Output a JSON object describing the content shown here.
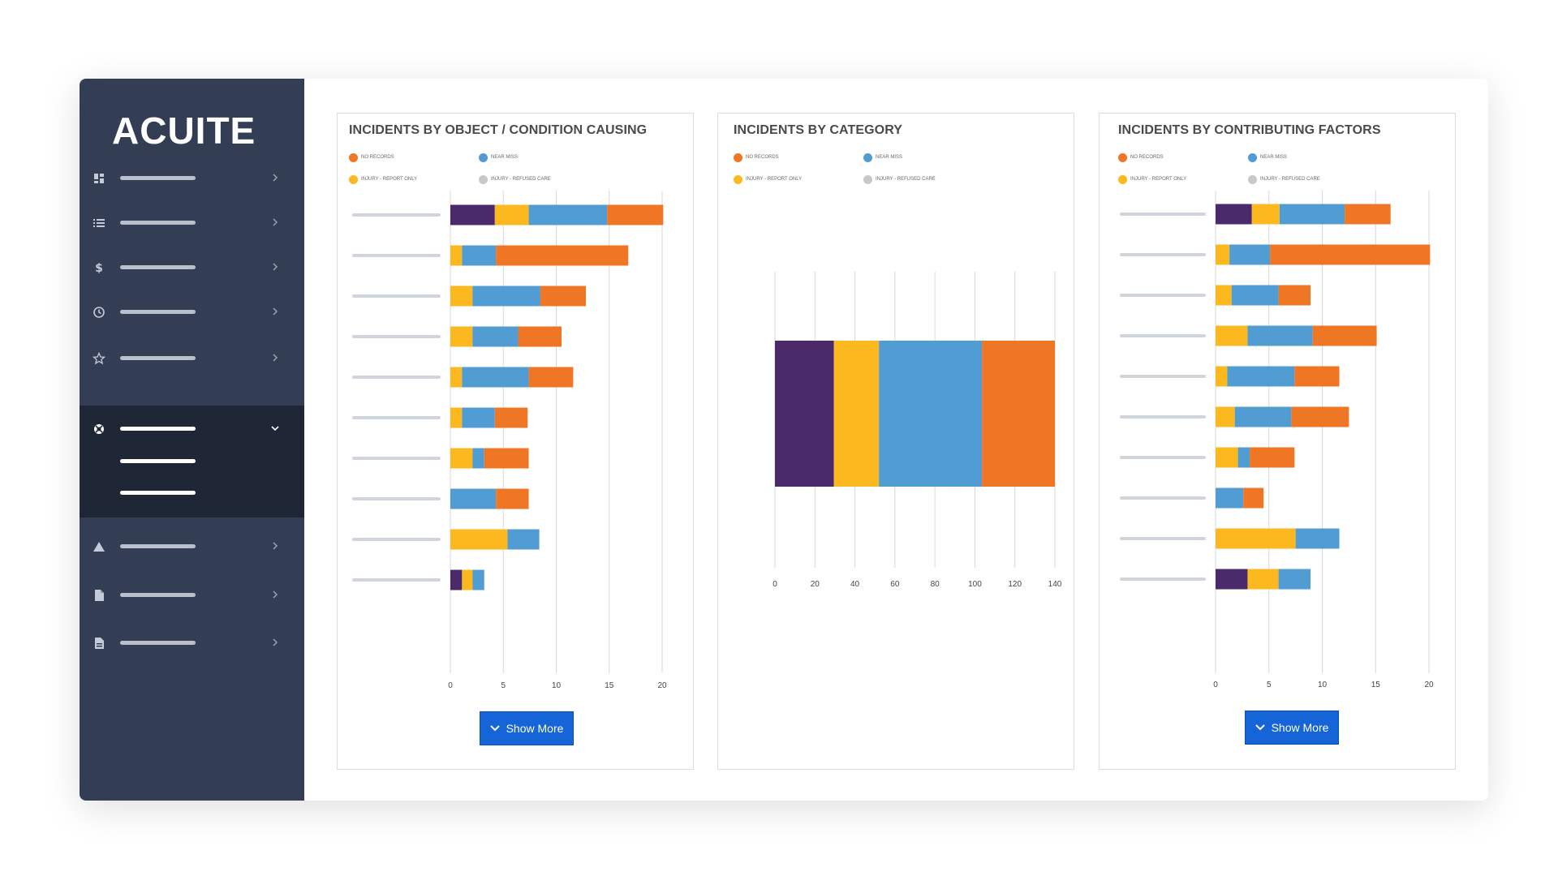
{
  "brand": {
    "logo_text": "ACUITE"
  },
  "colors": {
    "sidebar": "#333e54",
    "sidebar_active_group": "#1f2737",
    "series_purple": "#4b2a6b",
    "series_yellow": "#fbb91f",
    "series_blue": "#529cd4",
    "series_orange": "#ee7625",
    "button": "#1565d8"
  },
  "sidebar": {
    "items": [
      {
        "icon": "dashboard-icon",
        "label": ""
      },
      {
        "icon": "list-icon",
        "label": ""
      },
      {
        "icon": "dollar-icon",
        "label": ""
      },
      {
        "icon": "clock-icon",
        "label": ""
      },
      {
        "icon": "star-icon",
        "label": ""
      },
      {
        "icon": "lifebuoy-icon",
        "label": "",
        "expanded": true
      },
      {
        "icon": "warning-icon",
        "label": ""
      },
      {
        "icon": "file-icon",
        "label": ""
      },
      {
        "icon": "document-icon",
        "label": ""
      }
    ]
  },
  "legend": [
    {
      "label": "NO RECORDS",
      "color": "#ee7625"
    },
    {
      "label": "NEAR MISS",
      "color": "#529cd4"
    },
    {
      "label": "INJURY - REPORT ONLY",
      "color": "#fbb91f"
    },
    {
      "label": "INJURY - REFUSED CARE",
      "color": "#c8c8c8"
    }
  ],
  "panels": [
    {
      "title": "INCIDENTS BY OBJECT / CONDITION CAUSING",
      "show_more": "Show More"
    },
    {
      "title": "INCIDENTS BY CATEGORY"
    },
    {
      "title": "INCIDENTS BY CONTRIBUTING FACTORS",
      "show_more": "Show More"
    }
  ],
  "chart_data": [
    {
      "type": "bar",
      "orientation": "horizontal",
      "stacked": true,
      "title": "INCIDENTS BY OBJECT / CONDITION CAUSING",
      "xlim": [
        0,
        20
      ],
      "xticks": [
        0,
        5,
        10,
        15,
        20
      ],
      "categories": [
        "",
        "",
        "",
        "",
        "",
        "",
        "",
        "",
        "",
        ""
      ],
      "series": [
        {
          "color": "#4b2a6b",
          "values": [
            4.2,
            0,
            0,
            0,
            0,
            0,
            0,
            0,
            0,
            1.1
          ]
        },
        {
          "color": "#fbb91f",
          "values": [
            3.2,
            1.1,
            2.1,
            2.1,
            1.1,
            1.1,
            2.1,
            0,
            5.4,
            1.0
          ]
        },
        {
          "color": "#529cd4",
          "values": [
            7.4,
            3.2,
            6.4,
            4.3,
            6.3,
            3.1,
            1.1,
            4.3,
            3.0,
            1.1
          ]
        },
        {
          "color": "#ee7625",
          "values": [
            5.3,
            12.5,
            4.3,
            4.1,
            4.2,
            3.1,
            4.2,
            3.1,
            0,
            0
          ]
        }
      ]
    },
    {
      "type": "bar",
      "orientation": "horizontal",
      "stacked": true,
      "title": "INCIDENTS BY CATEGORY",
      "xlim": [
        0,
        140
      ],
      "xticks": [
        0,
        20,
        40,
        60,
        80,
        100,
        120,
        140
      ],
      "categories": [
        ""
      ],
      "series": [
        {
          "color": "#4b2a6b",
          "values": [
            29.5
          ]
        },
        {
          "color": "#fbb91f",
          "values": [
            22.5
          ]
        },
        {
          "color": "#529cd4",
          "values": [
            51.5
          ]
        },
        {
          "color": "#ee7625",
          "values": [
            36.5
          ]
        }
      ]
    },
    {
      "type": "bar",
      "orientation": "horizontal",
      "stacked": true,
      "title": "INCIDENTS BY CONTRIBUTING FACTORS",
      "xlim": [
        0,
        20
      ],
      "xticks": [
        0,
        5,
        10,
        15,
        20
      ],
      "categories": [
        "",
        "",
        "",
        "",
        "",
        "",
        "",
        "",
        "",
        ""
      ],
      "series": [
        {
          "color": "#4b2a6b",
          "values": [
            3.4,
            0,
            0,
            0,
            0,
            0,
            0,
            0,
            0,
            3.0
          ]
        },
        {
          "color": "#fbb91f",
          "values": [
            2.6,
            1.3,
            1.5,
            3.0,
            1.1,
            1.8,
            2.1,
            0,
            7.5,
            2.9
          ]
        },
        {
          "color": "#529cd4",
          "values": [
            6.1,
            3.8,
            4.4,
            6.1,
            6.3,
            5.3,
            1.1,
            2.6,
            4.1,
            3.0
          ]
        },
        {
          "color": "#ee7625",
          "values": [
            4.3,
            15.0,
            3.0,
            6.0,
            4.2,
            5.4,
            4.2,
            1.9,
            0,
            0
          ]
        }
      ]
    }
  ]
}
